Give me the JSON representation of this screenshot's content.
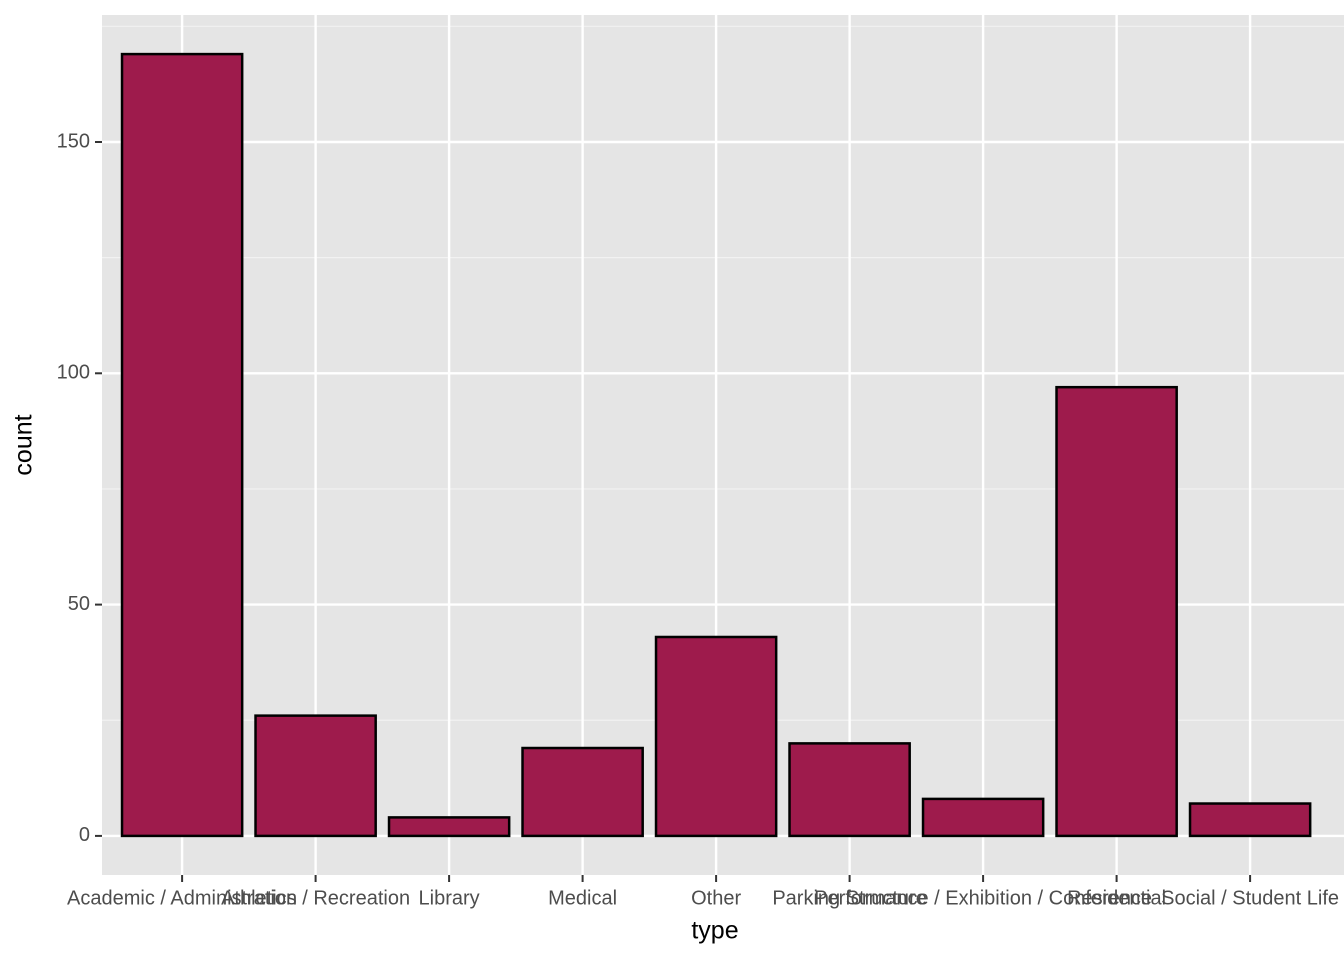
{
  "chart_data": {
    "type": "bar",
    "x_label": "type",
    "y_label": "count",
    "categories": [
      "Academic / Administration",
      "Athletics / Recreation",
      "Library",
      "Medical",
      "Other",
      "Parking Structure",
      "Performance / Exhibition / Conference",
      "Residential",
      "Social / Student Life"
    ],
    "values": [
      169,
      26,
      4,
      19,
      43,
      20,
      8,
      97,
      7
    ],
    "color": "#9e1b4c",
    "outline": "#000000",
    "ylim": [
      -8.45,
      177.45
    ],
    "yticks": [
      0,
      50,
      100,
      150
    ],
    "minor_yticks": [
      25,
      75,
      125,
      175
    ],
    "grid": true
  }
}
